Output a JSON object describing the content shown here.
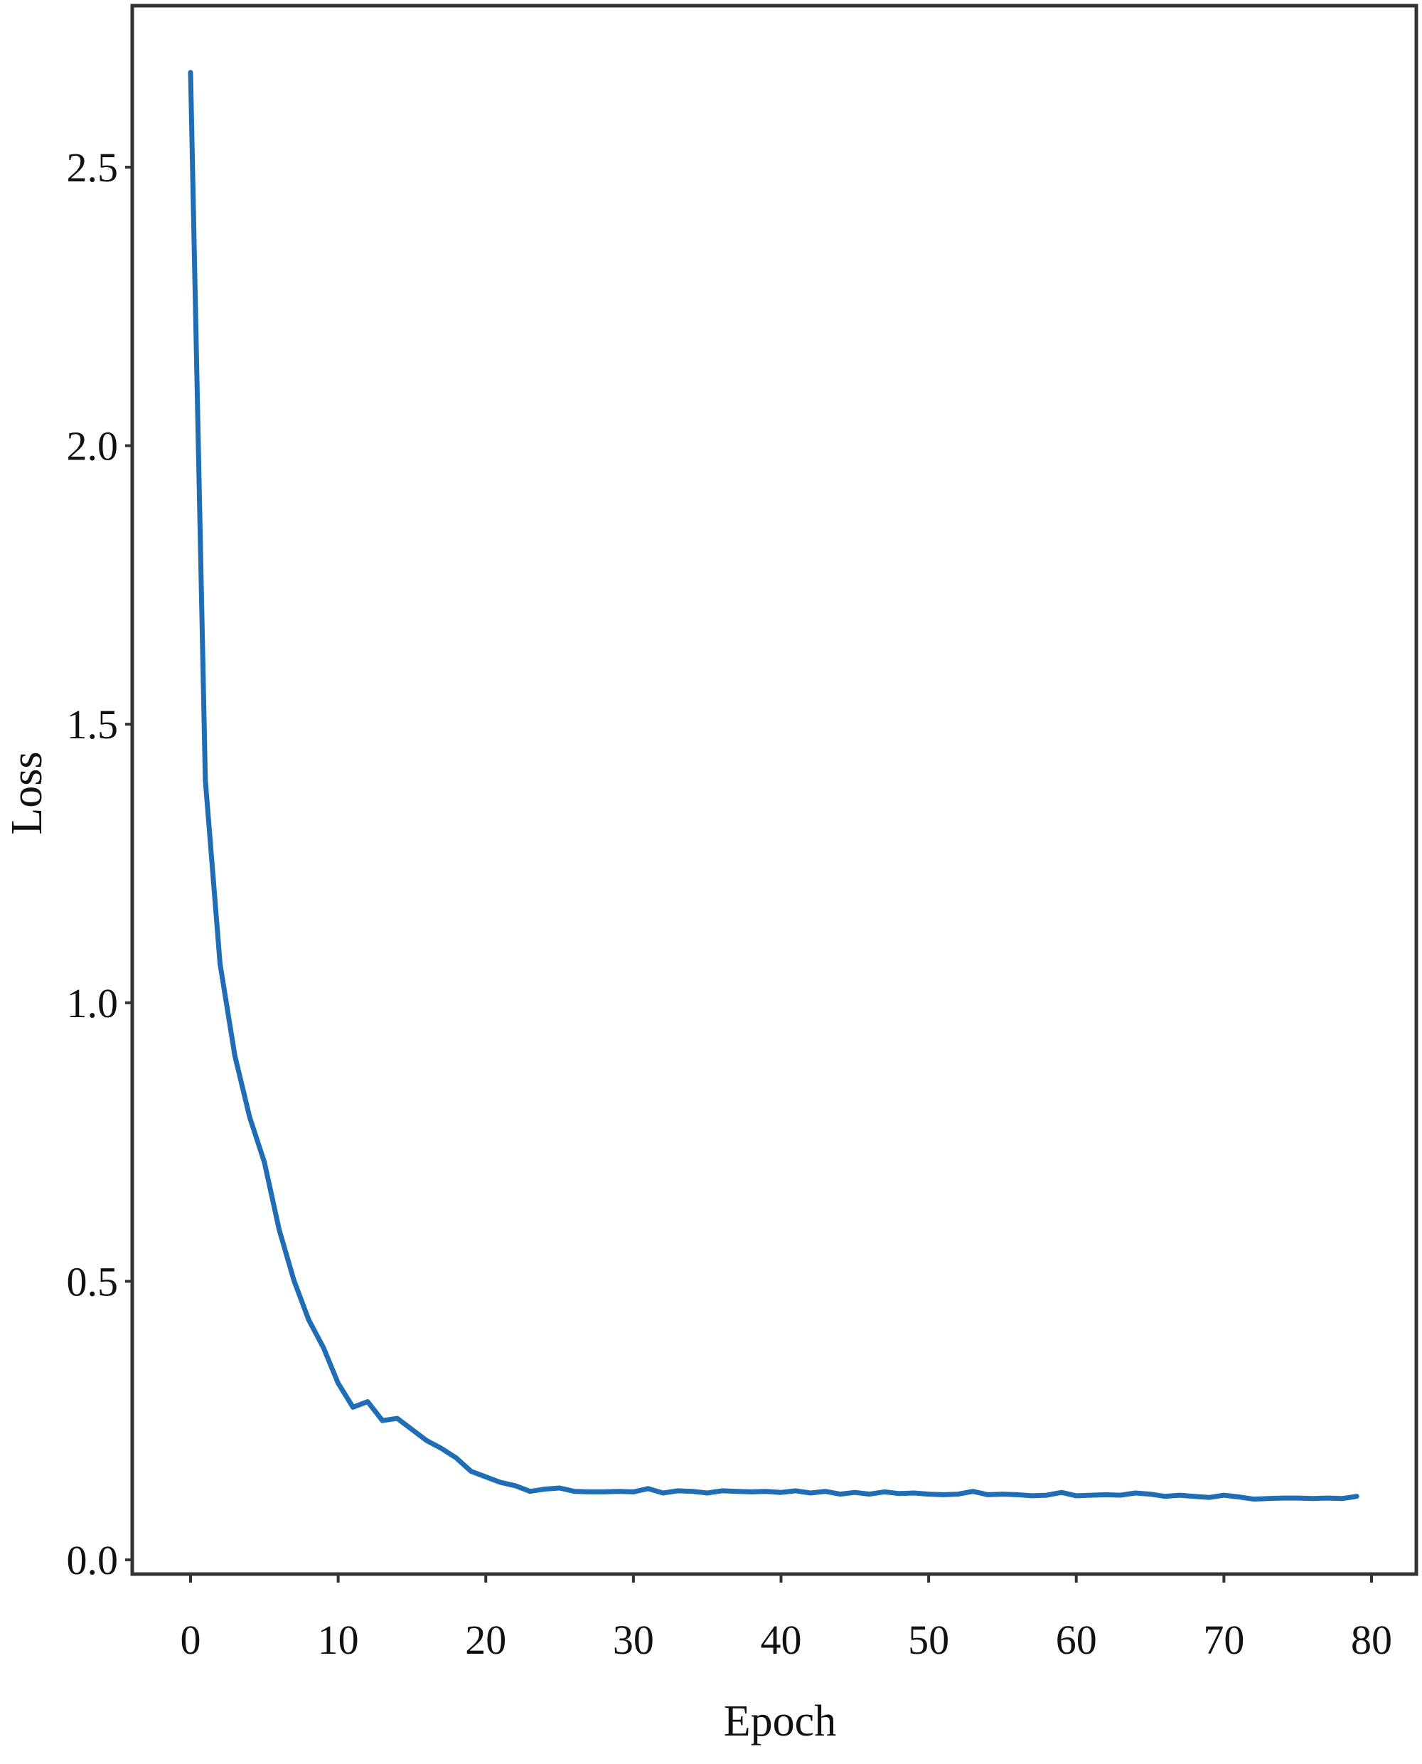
{
  "chart_data": {
    "type": "line",
    "title": "",
    "xlabel": "Epoch",
    "ylabel": "Loss",
    "xlim": [
      -4,
      81
    ],
    "ylim": [
      -0.03,
      2.78
    ],
    "grid": false,
    "line_color": "#1f6eb5",
    "x_ticks": [
      0,
      10,
      20,
      30,
      40,
      50,
      60,
      70,
      80
    ],
    "x_tick_labels": [
      "0",
      "10",
      "20",
      "30",
      "40",
      "50",
      "60",
      "70",
      "80"
    ],
    "y_ticks": [
      0.0,
      0.5,
      1.0,
      1.5,
      2.0,
      2.5
    ],
    "y_tick_labels": [
      "0.0",
      "0.5",
      "1.0",
      "1.5",
      "2.0",
      "2.5"
    ],
    "series": [
      {
        "x": [
          0,
          1,
          2,
          3,
          4,
          5,
          6,
          7,
          8,
          9,
          10,
          11,
          12,
          13,
          14,
          15,
          16,
          17,
          18,
          19,
          20,
          21,
          22,
          23,
          24,
          25,
          26,
          27,
          28,
          29,
          30,
          31,
          32,
          33,
          34,
          35,
          36,
          37,
          38,
          39,
          40,
          41,
          42,
          43,
          44,
          45,
          46,
          47,
          48,
          49,
          50,
          51,
          52,
          53,
          54,
          55,
          56,
          57,
          58,
          59,
          60,
          61,
          62,
          63,
          64,
          65,
          66,
          67,
          68,
          69,
          70,
          71,
          72,
          73,
          74,
          75,
          76,
          77,
          78,
          79
        ],
        "values": [
          2.67,
          1.4,
          1.07,
          0.905,
          0.795,
          0.714,
          0.593,
          0.502,
          0.431,
          0.381,
          0.317,
          0.274,
          0.284,
          0.25,
          0.254,
          0.234,
          0.214,
          0.2,
          0.183,
          0.159,
          0.149,
          0.139,
          0.133,
          0.123,
          0.127,
          0.129,
          0.123,
          0.122,
          0.122,
          0.123,
          0.122,
          0.128,
          0.12,
          0.124,
          0.123,
          0.12,
          0.124,
          0.123,
          0.122,
          0.123,
          0.121,
          0.124,
          0.12,
          0.123,
          0.118,
          0.121,
          0.118,
          0.122,
          0.119,
          0.12,
          0.118,
          0.117,
          0.118,
          0.123,
          0.117,
          0.118,
          0.117,
          0.115,
          0.116,
          0.121,
          0.115,
          0.116,
          0.117,
          0.116,
          0.12,
          0.118,
          0.114,
          0.116,
          0.114,
          0.112,
          0.116,
          0.113,
          0.109,
          0.11,
          0.111,
          0.111,
          0.11,
          0.111,
          0.11,
          0.114
        ]
      }
    ]
  }
}
